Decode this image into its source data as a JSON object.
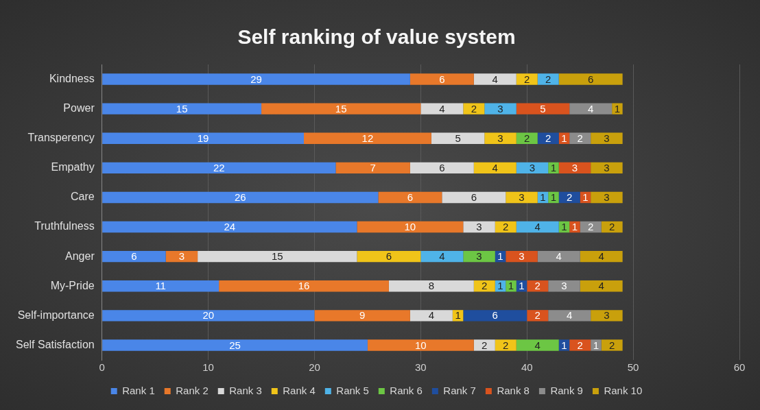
{
  "chart_data": {
    "type": "bar",
    "orientation": "horizontal",
    "stacked": true,
    "title": "Self ranking of value system",
    "categories": [
      "Kindness",
      "Power",
      "Transperency",
      "Empathy",
      "Care",
      "Truthfulness",
      "Anger",
      "My-Pride",
      "Self-importance",
      "Self Satisfaction"
    ],
    "series": [
      {
        "name": "Rank 1",
        "color": "#4a86e8",
        "values": [
          29,
          15,
          19,
          22,
          26,
          24,
          6,
          11,
          20,
          25
        ]
      },
      {
        "name": "Rank 2",
        "color": "#e8782a",
        "values": [
          6,
          15,
          12,
          7,
          6,
          10,
          3,
          16,
          9,
          10
        ]
      },
      {
        "name": "Rank 3",
        "color": "#d9d9d9",
        "values": [
          4,
          4,
          5,
          6,
          6,
          3,
          15,
          8,
          4,
          2
        ]
      },
      {
        "name": "Rank 4",
        "color": "#f0c419",
        "values": [
          2,
          2,
          3,
          4,
          3,
          2,
          6,
          2,
          1,
          2
        ]
      },
      {
        "name": "Rank 5",
        "color": "#4fb3e8",
        "values": [
          2,
          3,
          null,
          3,
          1,
          4,
          4,
          1,
          null,
          null
        ]
      },
      {
        "name": "Rank 6",
        "color": "#6cc644",
        "values": [
          null,
          null,
          2,
          1,
          1,
          1,
          3,
          1,
          null,
          4
        ]
      },
      {
        "name": "Rank 7",
        "color": "#1f4e9e",
        "values": [
          null,
          null,
          2,
          null,
          2,
          null,
          1,
          1,
          6,
          1
        ]
      },
      {
        "name": "Rank 8",
        "color": "#d9531e",
        "values": [
          null,
          5,
          1,
          3,
          1,
          1,
          3,
          2,
          2,
          2
        ]
      },
      {
        "name": "Rank 9",
        "color": "#8c8c8c",
        "values": [
          null,
          4,
          2,
          null,
          null,
          2,
          4,
          3,
          4,
          1
        ]
      },
      {
        "name": "Rank 10",
        "color": "#c9a00c",
        "values": [
          6,
          1,
          3,
          3,
          3,
          2,
          4,
          4,
          3,
          2
        ]
      }
    ],
    "xlim": [
      0,
      60
    ],
    "xticks": [
      0,
      10,
      20,
      30,
      40,
      50,
      60
    ],
    "grid": "x",
    "legend": "bottom",
    "data_labels": true
  }
}
